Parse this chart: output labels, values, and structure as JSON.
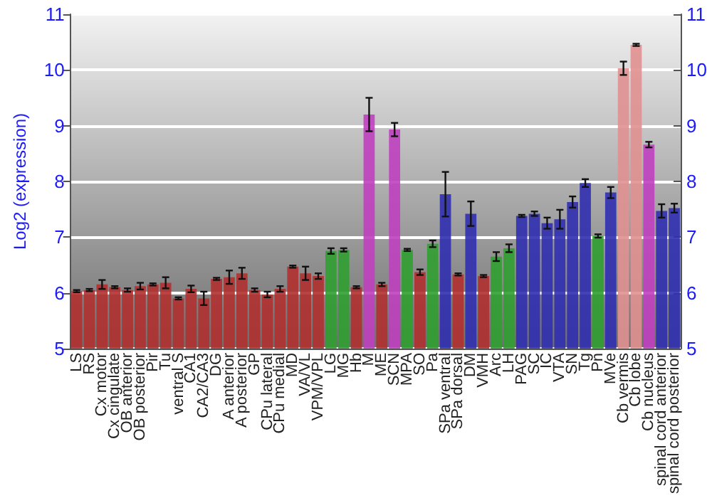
{
  "chart_data": {
    "type": "bar",
    "ylabel": "Log2 (expression)",
    "categories": [
      "LS",
      "RS",
      "Cx motor",
      "Cx cingulate",
      "OB anterior",
      "OB posterior",
      "Pir",
      "Tu",
      "ventral S",
      "CA1",
      "CA2/CA3",
      "DG",
      "A anterior",
      "A posterior",
      "GP",
      "CPu lateral",
      "CPu medial",
      "MD",
      "VA/VL",
      "VPM/VPL",
      "LG",
      "MG",
      "Hb",
      "M",
      "ME",
      "SCN",
      "MPA",
      "SO",
      "Pa",
      "SPa ventral",
      "SPa dorsal",
      "DM",
      "VMH",
      "Arc",
      "LH",
      "PAG",
      "SC",
      "IC",
      "VTA",
      "SN",
      "Tg",
      "Pn",
      "MVe",
      "Cb vermis",
      "Cb lobe",
      "Cb nucleus",
      "spinal cord anterior",
      "spinal cord posterior"
    ],
    "values": [
      6.03,
      6.05,
      6.15,
      6.1,
      6.05,
      6.12,
      6.15,
      6.18,
      5.9,
      6.07,
      5.9,
      6.25,
      6.28,
      6.35,
      6.05,
      5.97,
      6.07,
      6.47,
      6.35,
      6.3,
      6.75,
      6.77,
      6.1,
      9.2,
      6.15,
      8.93,
      6.77,
      6.37,
      6.88,
      7.77,
      6.33,
      7.42,
      6.3,
      6.65,
      6.8,
      7.38,
      7.42,
      7.25,
      7.32,
      7.63,
      7.97,
      7.02,
      7.8,
      10.03,
      10.45,
      8.66,
      7.47,
      7.52
    ],
    "errors": [
      0.02,
      0.02,
      0.08,
      0.02,
      0.03,
      0.06,
      0.02,
      0.1,
      0.02,
      0.06,
      0.12,
      0.02,
      0.12,
      0.1,
      0.03,
      0.05,
      0.05,
      0.02,
      0.12,
      0.05,
      0.05,
      0.03,
      0.02,
      0.3,
      0.03,
      0.12,
      0.02,
      0.05,
      0.06,
      0.4,
      0.02,
      0.22,
      0.02,
      0.08,
      0.07,
      0.02,
      0.04,
      0.1,
      0.17,
      0.1,
      0.07,
      0.03,
      0.1,
      0.12,
      0.02,
      0.05,
      0.12,
      0.08
    ],
    "colors": [
      "#b03030",
      "#b03030",
      "#b03030",
      "#b03030",
      "#b03030",
      "#b03030",
      "#b03030",
      "#b03030",
      "#b03030",
      "#b03030",
      "#b03030",
      "#b03030",
      "#b03030",
      "#b03030",
      "#b03030",
      "#b03030",
      "#b03030",
      "#b03030",
      "#b03030",
      "#b03030",
      "#30a030",
      "#30a030",
      "#b03030",
      "#c040c0",
      "#b03030",
      "#c040c0",
      "#30a030",
      "#b03030",
      "#30a030",
      "#3030b0",
      "#b03030",
      "#3030b0",
      "#b03030",
      "#30a030",
      "#30a030",
      "#3030b0",
      "#3030b0",
      "#3030b0",
      "#3030b0",
      "#3030b0",
      "#3030b0",
      "#30a030",
      "#3030b0",
      "#e09090",
      "#e09090",
      "#c040c0",
      "#3030b0",
      "#3030b0"
    ],
    "ylim": [
      5,
      11
    ],
    "yticks": [
      5,
      6,
      7,
      8,
      9,
      10,
      11
    ],
    "y2lim": [
      5,
      11
    ],
    "y2ticks": [
      5,
      6,
      7,
      8,
      9,
      10,
      11
    ],
    "grid": "y"
  }
}
